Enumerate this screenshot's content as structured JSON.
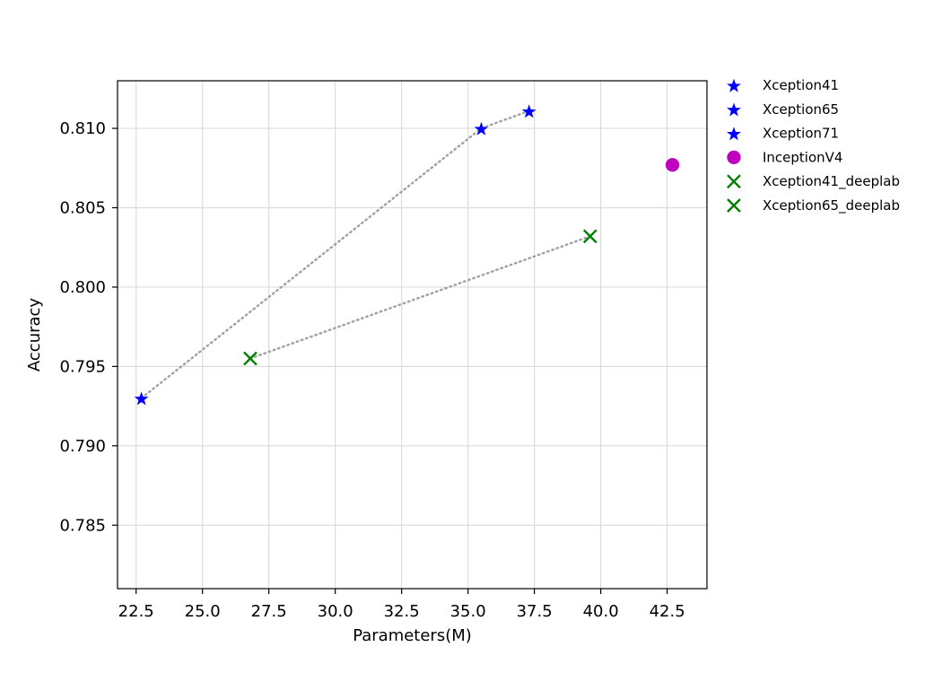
{
  "chart_data": {
    "type": "scatter",
    "title": "",
    "xlabel": "Parameters(M)",
    "ylabel": "Accuracy",
    "xlim": [
      21.8,
      44.0
    ],
    "ylim": [
      0.781,
      0.813
    ],
    "x_ticks": [
      "22.5",
      "25.0",
      "27.5",
      "30.0",
      "32.5",
      "35.0",
      "37.5",
      "40.0",
      "42.5"
    ],
    "y_ticks": [
      "0.785",
      "0.790",
      "0.795",
      "0.800",
      "0.805",
      "0.810"
    ],
    "grid": true,
    "legend_position": "outside-right",
    "series": [
      {
        "name": "Xception41",
        "marker": "star",
        "color": "#0000ff",
        "points": [
          {
            "x": 22.7,
            "y": 0.793
          }
        ]
      },
      {
        "name": "Xception65",
        "marker": "star",
        "color": "#0000ff",
        "points": [
          {
            "x": 35.5,
            "y": 0.81
          }
        ]
      },
      {
        "name": "Xception71",
        "marker": "star",
        "color": "#0000ff",
        "points": [
          {
            "x": 37.3,
            "y": 0.8111
          }
        ]
      },
      {
        "name": "InceptionV4",
        "marker": "circle",
        "color": "#bf00bf",
        "points": [
          {
            "x": 42.7,
            "y": 0.8077
          }
        ]
      },
      {
        "name": "Xception41_deeplab",
        "marker": "x",
        "color": "#008000",
        "points": [
          {
            "x": 26.8,
            "y": 0.7955
          }
        ]
      },
      {
        "name": "Xception65_deeplab",
        "marker": "x",
        "color": "#008000",
        "points": [
          {
            "x": 39.6,
            "y": 0.8032
          }
        ]
      }
    ],
    "connector_lines": [
      {
        "style": "dotted",
        "color": "#a0a0a0",
        "points": [
          {
            "x": 22.7,
            "y": 0.793
          },
          {
            "x": 35.5,
            "y": 0.81
          },
          {
            "x": 37.3,
            "y": 0.8111
          }
        ]
      },
      {
        "style": "dotted",
        "color": "#a0a0a0",
        "points": [
          {
            "x": 26.8,
            "y": 0.7955
          },
          {
            "x": 39.6,
            "y": 0.8032
          }
        ]
      }
    ]
  }
}
